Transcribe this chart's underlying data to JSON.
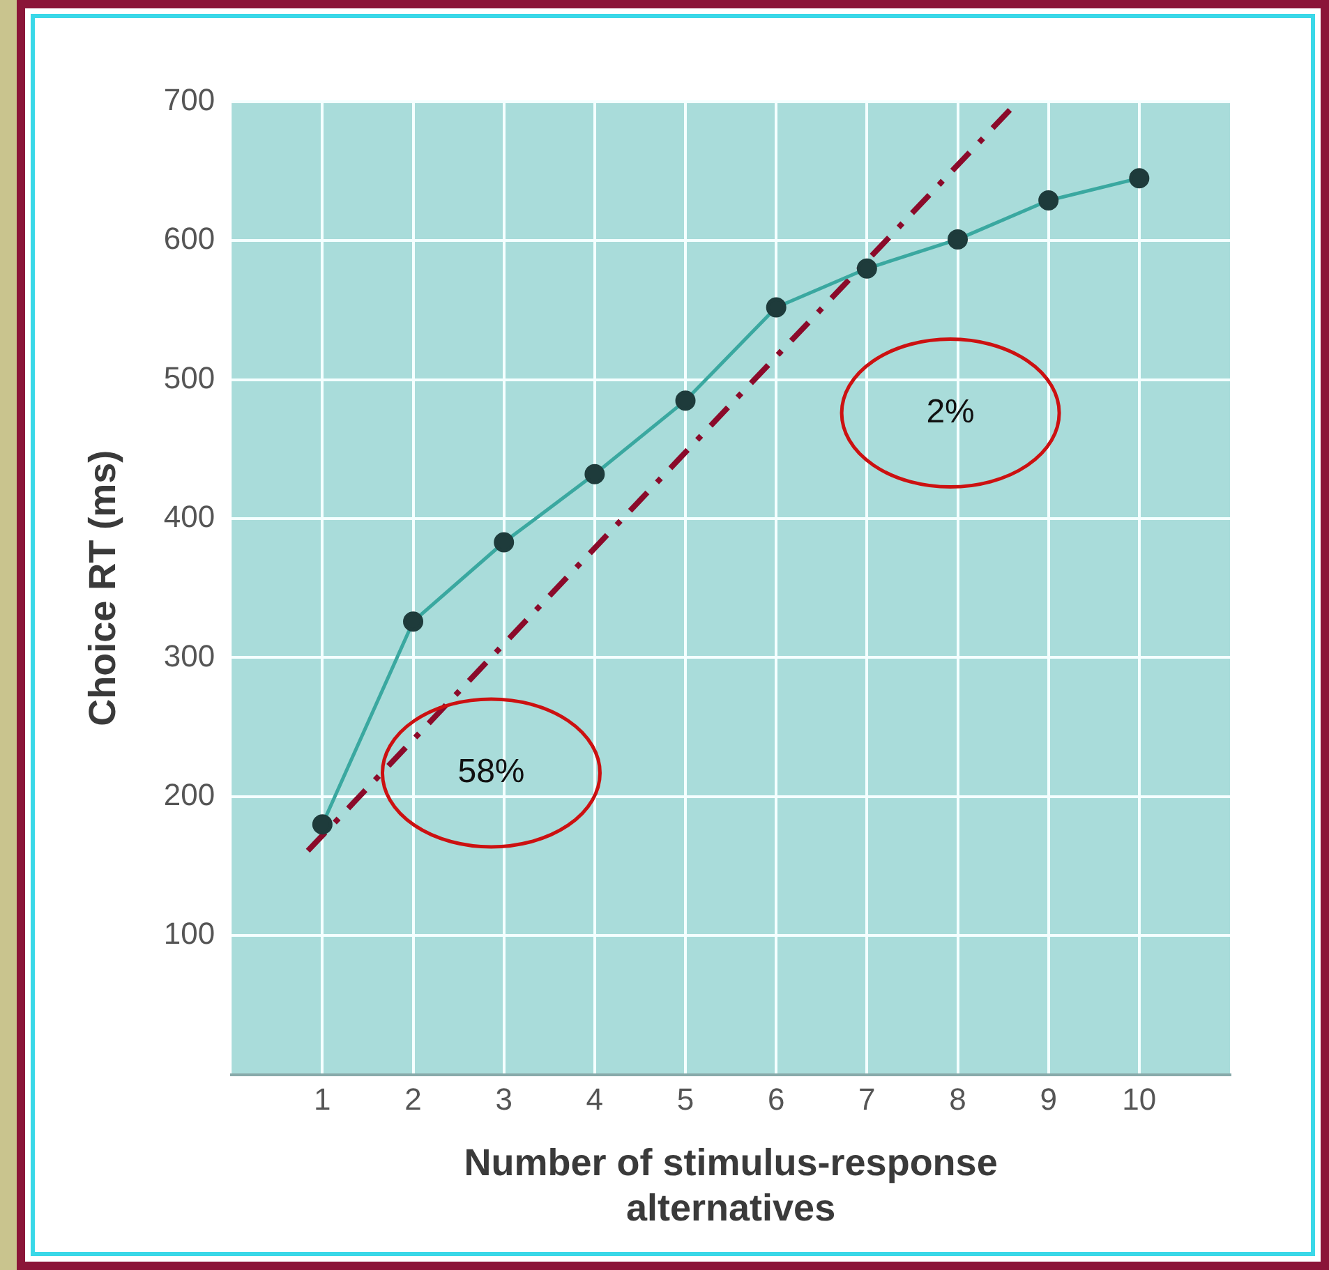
{
  "chart_data": {
    "type": "line",
    "xlabel": "Number of stimulus-response alternatives",
    "ylabel": "Choice RT (ms)",
    "x": [
      1,
      2,
      3,
      4,
      5,
      6,
      7,
      8,
      9,
      10
    ],
    "series": [
      {
        "color": "#3aa8a0",
        "values": [
          180,
          326,
          383,
          432,
          485,
          552,
          580,
          601,
          629,
          645
        ],
        "marker": "circle"
      },
      {
        "type": "line",
        "color": "#8b0a2a",
        "x": [
          0.84,
          8.66
        ],
        "values": [
          161,
          700
        ],
        "line_style": "dashed",
        "marker": "none"
      }
    ],
    "xlim": [
      0,
      11
    ],
    "xticks": [
      1,
      2,
      3,
      4,
      5,
      6,
      7,
      8,
      9,
      10
    ],
    "ylim": [
      0,
      700
    ],
    "yticks": [
      {
        "value": 0,
        "label": null
      },
      100,
      200,
      300,
      400,
      500,
      600,
      700
    ],
    "grid": true,
    "legend": false,
    "annotations": [
      "58%",
      "2%"
    ]
  }
}
